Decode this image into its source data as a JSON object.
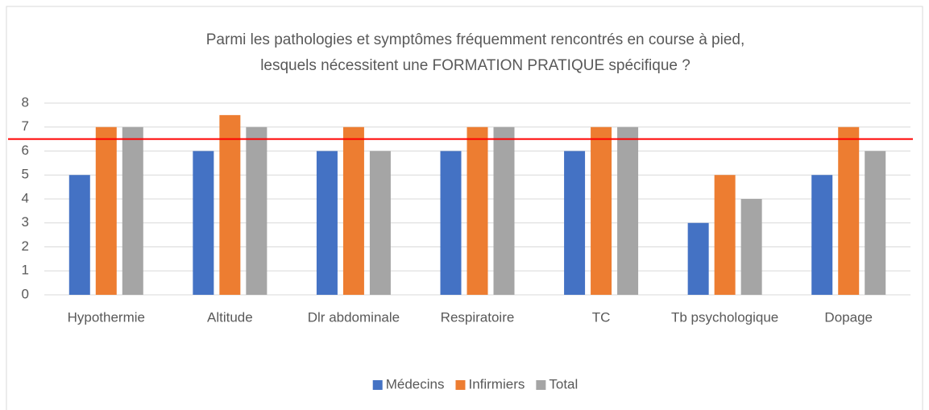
{
  "chart_data": {
    "type": "bar",
    "title": [
      "Parmi les pathologies et symptômes fréquemment rencontrés en course à pied,",
      "lesquels nécessitent une FORMATION PRATIQUE spécifique ?"
    ],
    "categories": [
      "Hypothermie",
      "Altitude",
      "Dlr abdominale",
      "Respiratoire",
      "TC",
      "Tb psychologique",
      "Dopage"
    ],
    "series": [
      {
        "name": "Médecins",
        "color": "#4472c4",
        "values": [
          5,
          6,
          6,
          6,
          6,
          3,
          5
        ]
      },
      {
        "name": "Infirmiers",
        "color": "#ed7d31",
        "values": [
          7,
          7.5,
          7,
          7,
          7,
          5,
          7
        ]
      },
      {
        "name": "Total",
        "color": "#a5a5a5",
        "values": [
          7,
          7,
          6,
          7,
          7,
          4,
          6
        ]
      }
    ],
    "ylim": [
      0,
      8
    ],
    "yticks": [
      0,
      1,
      2,
      3,
      4,
      5,
      6,
      7,
      8
    ],
    "grid": true,
    "legend": "bottom",
    "reference_line": {
      "value": 6.5,
      "color": "#ff0000"
    }
  }
}
